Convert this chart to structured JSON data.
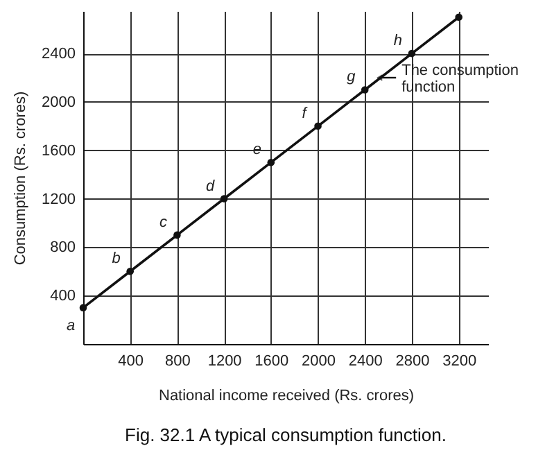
{
  "chart_data": {
    "type": "line",
    "title": "Fig. 32.1    A typical consumption function.",
    "xlabel": "National income received (Rs. crores)",
    "ylabel": "Consumption (Rs. crores)",
    "x": [
      0,
      400,
      800,
      1200,
      1600,
      2000,
      2400,
      2800,
      3200
    ],
    "series": [
      {
        "color": "#111111",
        "values": [
          300,
          600,
          900,
          1200,
          1500,
          1800,
          2100,
          2400,
          2700
        ],
        "value_labels": [
          "a",
          "b",
          "c",
          "d",
          "e",
          "f",
          "g",
          "h",
          null
        ]
      }
    ],
    "xlim": [
      0,
      3450
    ],
    "xticks": [
      400,
      800,
      1200,
      1600,
      2000,
      2400,
      2800,
      3200
    ],
    "ylim": [
      0,
      2750
    ],
    "yticks": [
      400,
      800,
      1200,
      1600,
      2000,
      2400
    ],
    "grid": true,
    "marker": "circle",
    "line_style": "solid",
    "annotations": [
      {
        "text": "The consumption function",
        "x": 2500,
        "y": 2200
      }
    ]
  }
}
